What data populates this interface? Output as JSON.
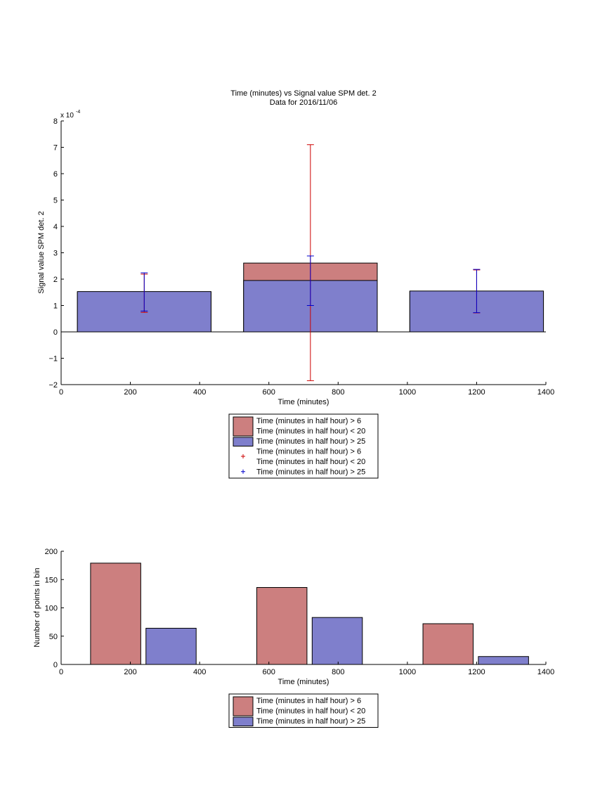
{
  "chart_data": [
    {
      "type": "bar",
      "title": "Time (minutes) vs Signal value SPM det. 2",
      "subtitle": "Data for 2016/11/06",
      "xlabel": "Time (minutes)",
      "ylabel": "Signal value SPM det. 2",
      "xlim": [
        0,
        1400
      ],
      "ylim": [
        -0.0002,
        0.0008
      ],
      "y_exponent_label": "x 10",
      "y_exponent": "-4",
      "xticks": [
        "0",
        "200",
        "400",
        "600",
        "800",
        "1000",
        "1200",
        "1400"
      ],
      "yticks": [
        "−2",
        "−1",
        "0",
        "1",
        "2",
        "3",
        "4",
        "5",
        "6",
        "7",
        "8"
      ],
      "bin_centers": [
        240,
        720,
        1200
      ],
      "bin_width": 386,
      "series": [
        {
          "name": "Time (minutes in half hour) > 6\nTime (minutes in half hour) < 20",
          "color": "#cc7f7f",
          "values": [
            0.00015,
            0.000261,
            0.000153
          ]
        },
        {
          "name": "Time (minutes in half hour) > 25",
          "color": "#7f7fcc",
          "values": [
            0.000153,
            0.000195,
            0.000155
          ]
        }
      ],
      "errorbars": [
        {
          "name": "Time (minutes in half hour) > 6\nTime (minutes in half hour) < 20",
          "color": "#cc0000",
          "center": [
            0.00015,
            0.000261,
            0.000153
          ],
          "low": [
            7.4e-05,
            -0.000185,
            7.2e-05
          ],
          "high": [
            0.000219,
            0.00071,
            0.000235
          ]
        },
        {
          "name": "Time (minutes in half hour) > 25",
          "color": "#0000cc",
          "center": [
            0.000153,
            0.000195,
            0.000155
          ],
          "low": [
            7.9e-05,
            0.0001,
            7.3e-05
          ],
          "high": [
            0.000224,
            0.000288,
            0.000237
          ]
        }
      ],
      "legend": [
        {
          "kind": "patch",
          "color": "#cc7f7f",
          "lines": [
            "Time (minutes in half hour) > 6",
            "Time (minutes in half hour) < 20"
          ]
        },
        {
          "kind": "patch",
          "color": "#7f7fcc",
          "lines": [
            "Time (minutes in half hour) > 25"
          ]
        },
        {
          "kind": "marker",
          "color": "#cc0000",
          "lines": [
            "Time (minutes in half hour) > 6",
            "Time (minutes in half hour) < 20"
          ]
        },
        {
          "kind": "marker",
          "color": "#0000cc",
          "lines": [
            "Time (minutes in half hour) > 25"
          ]
        }
      ],
      "legend_position": "below"
    },
    {
      "type": "bar",
      "xlabel": "Time (minutes)",
      "ylabel": "Number of points in bin",
      "xlim": [
        0,
        1400
      ],
      "ylim": [
        0,
        200
      ],
      "xticks": [
        "0",
        "200",
        "400",
        "600",
        "800",
        "1000",
        "1200",
        "1400"
      ],
      "yticks": [
        "0",
        "50",
        "100",
        "150",
        "200"
      ],
      "bars": [
        {
          "series": 0,
          "x_start": 85,
          "x_end": 230,
          "value": 179
        },
        {
          "series": 1,
          "x_start": 245,
          "x_end": 390,
          "value": 64
        },
        {
          "series": 0,
          "x_start": 565,
          "x_end": 710,
          "value": 136
        },
        {
          "series": 1,
          "x_start": 725,
          "x_end": 870,
          "value": 83
        },
        {
          "series": 0,
          "x_start": 1045,
          "x_end": 1190,
          "value": 72
        },
        {
          "series": 1,
          "x_start": 1205,
          "x_end": 1350,
          "value": 14
        }
      ],
      "series": [
        {
          "name": "Time (minutes in half hour) > 6\nTime (minutes in half hour) < 20",
          "color": "#cc7f7f"
        },
        {
          "name": "Time (minutes in half hour) > 25",
          "color": "#7f7fcc"
        }
      ],
      "legend": [
        {
          "kind": "patch",
          "color": "#cc7f7f",
          "lines": [
            "Time (minutes in half hour) > 6",
            "Time (minutes in half hour) < 20"
          ]
        },
        {
          "kind": "patch",
          "color": "#7f7fcc",
          "lines": [
            "Time (minutes in half hour) > 25"
          ]
        }
      ],
      "legend_position": "below"
    }
  ]
}
